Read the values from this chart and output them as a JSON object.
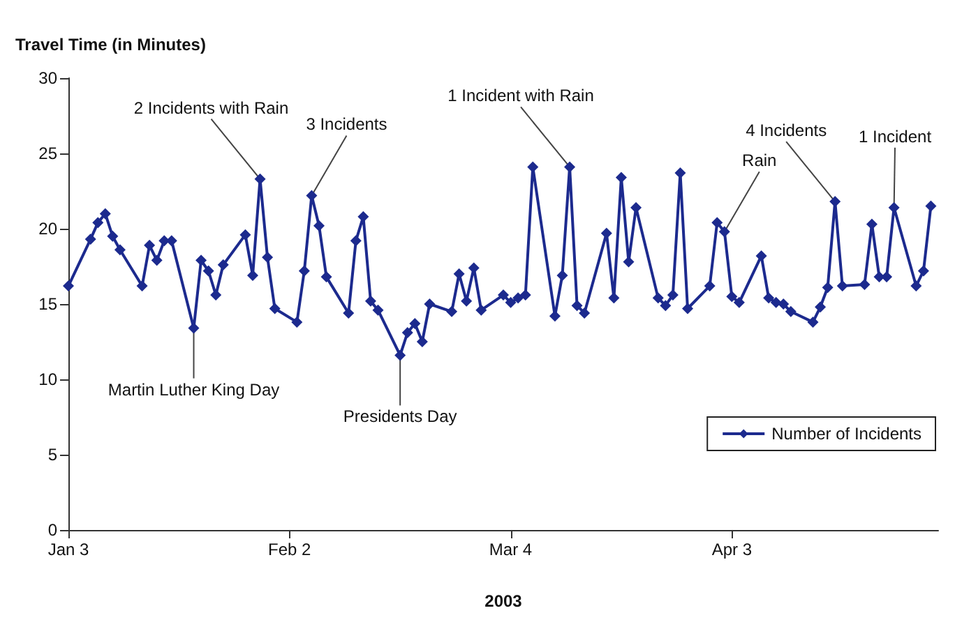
{
  "chart_data": {
    "type": "line",
    "ylabel": "Travel Time (in Minutes)",
    "xlabel": "2003",
    "x": [
      "2003-01-03",
      "2003-01-06",
      "2003-01-07",
      "2003-01-08",
      "2003-01-09",
      "2003-01-10",
      "2003-01-13",
      "2003-01-14",
      "2003-01-15",
      "2003-01-16",
      "2003-01-17",
      "2003-01-20",
      "2003-01-21",
      "2003-01-22",
      "2003-01-23",
      "2003-01-24",
      "2003-01-27",
      "2003-01-28",
      "2003-01-29",
      "2003-01-30",
      "2003-01-31",
      "2003-02-03",
      "2003-02-04",
      "2003-02-05",
      "2003-02-06",
      "2003-02-07",
      "2003-02-10",
      "2003-02-11",
      "2003-02-12",
      "2003-02-13",
      "2003-02-14",
      "2003-02-17",
      "2003-02-18",
      "2003-02-19",
      "2003-02-20",
      "2003-02-21",
      "2003-02-24",
      "2003-02-25",
      "2003-02-26",
      "2003-02-27",
      "2003-02-28",
      "2003-03-03",
      "2003-03-04",
      "2003-03-05",
      "2003-03-06",
      "2003-03-07",
      "2003-03-10",
      "2003-03-11",
      "2003-03-12",
      "2003-03-13",
      "2003-03-14",
      "2003-03-17",
      "2003-03-18",
      "2003-03-19",
      "2003-03-20",
      "2003-03-21",
      "2003-03-24",
      "2003-03-25",
      "2003-03-26",
      "2003-03-27",
      "2003-03-28",
      "2003-03-31",
      "2003-04-01",
      "2003-04-02",
      "2003-04-03",
      "2003-04-04",
      "2003-04-07",
      "2003-04-08",
      "2003-04-09",
      "2003-04-10",
      "2003-04-11",
      "2003-04-14",
      "2003-04-15",
      "2003-04-16",
      "2003-04-17",
      "2003-04-18",
      "2003-04-21",
      "2003-04-22",
      "2003-04-23",
      "2003-04-24",
      "2003-04-25",
      "2003-04-28",
      "2003-04-29",
      "2003-04-30"
    ],
    "series": [
      {
        "name": "Number of Incidents",
        "color": "#1c2a8e",
        "values": [
          16.2,
          19.3,
          20.4,
          21.0,
          19.5,
          18.6,
          16.2,
          18.9,
          17.9,
          19.2,
          19.2,
          13.4,
          17.9,
          17.2,
          15.6,
          17.6,
          19.6,
          16.9,
          23.3,
          18.1,
          14.7,
          13.8,
          17.2,
          22.2,
          20.2,
          16.8,
          14.4,
          19.2,
          20.8,
          15.2,
          14.6,
          11.6,
          13.1,
          13.7,
          12.5,
          15.0,
          14.5,
          17.0,
          15.2,
          17.4,
          14.6,
          15.6,
          15.1,
          15.4,
          15.6,
          24.1,
          14.2,
          16.9,
          24.1,
          14.9,
          14.4,
          19.7,
          15.4,
          23.4,
          17.8,
          21.4,
          15.4,
          14.9,
          15.6,
          23.7,
          14.7,
          16.2,
          20.4,
          19.8,
          15.5,
          15.1,
          18.2,
          15.4,
          15.1,
          15.0,
          14.5,
          13.8,
          14.8,
          16.1,
          21.8,
          16.2,
          16.3,
          20.3,
          16.8,
          16.8,
          21.4,
          16.2,
          17.2,
          21.5
        ]
      }
    ],
    "xlim": [
      "2003-01-03",
      "2003-05-01"
    ],
    "xticks": [
      {
        "value": "2003-01-03",
        "label": "Jan 3"
      },
      {
        "value": "2003-02-02",
        "label": "Feb 2"
      },
      {
        "value": "2003-03-04",
        "label": "Mar 4"
      },
      {
        "value": "2003-04-03",
        "label": "Apr 3"
      }
    ],
    "ylim": [
      0,
      30
    ],
    "yticks": [
      0,
      5,
      10,
      15,
      20,
      25,
      30
    ],
    "annotations": [
      {
        "text": "2 Incidents with Rain",
        "x": "2003-01-29",
        "y": 23.3
      },
      {
        "text": "3 Incidents",
        "x": "2003-02-05",
        "y": 22.2
      },
      {
        "text": "Martin Luther King Day",
        "x": "2003-01-20",
        "y": 13.4
      },
      {
        "text": "Presidents Day",
        "x": "2003-02-17",
        "y": 11.6
      },
      {
        "text": "1 Incident with Rain",
        "x": "2003-03-12",
        "y": 24.1
      },
      {
        "text": "Rain",
        "x": "2003-04-02",
        "y": 19.8
      },
      {
        "text": "4 Incidents",
        "x": "2003-04-17",
        "y": 21.8
      },
      {
        "text": "1 Incident",
        "x": "2003-04-25",
        "y": 21.4
      }
    ],
    "legend": "bottom right",
    "marker": "diamond",
    "line_style": "solid",
    "grid": false
  }
}
